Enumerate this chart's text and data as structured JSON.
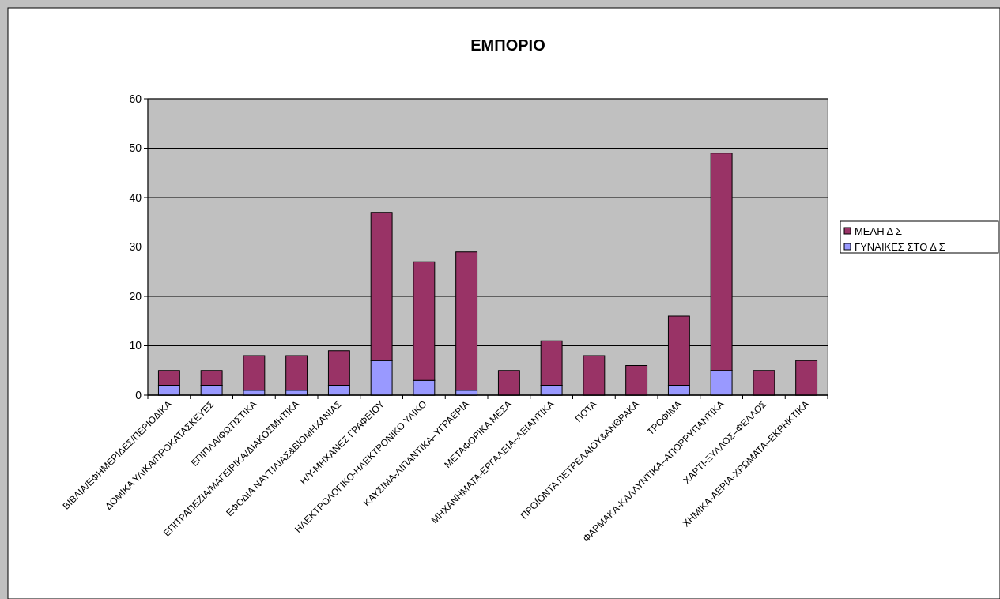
{
  "chart_data": {
    "type": "bar",
    "title": "ΕΜΠΟΡΙΟ",
    "stacked": true,
    "legend": "right",
    "grid": "y",
    "categories": [
      "ΒΙΒΛΙΑ/ΕΦΗΜΕΡΙΔΕΣ/ΠΕΡΙΟΔΙΚΑ",
      "ΔΟΜΙΚΑ ΥΛΙΚΑ/ΠΡΟΚΑΤΑΣΚΕΥΕΣ",
      "ΕΠΙΠΛΑ/ΦΩΤΙΣΤΙΚΑ",
      "ΕΠΙΤΡΑΠΕΖΙΑ/ΜΑΓΕΙΡΙΚΑ/ΔΙΑΚΟΣΜΗΤΙΚΑ",
      "ΕΦΟΔΙΑ ΝΑΥΤΙΛΙΑΣ&ΒΙΟΜΗΧΑΝΙΑΣ",
      "Η/Υ-ΜΗΧΑΝΕΣ ΓΡΑΦΕΙΟΥ",
      "ΗΛΕΚΤΡΟΛΟΓΙΚΟ-ΗΛΕΚΤΡΟΝΙΚΟ ΥΛΙΚΟ",
      "ΚΑΥΣΙΜΑ-ΛΙΠΑΝΤΙΚΑ–ΥΓΡΑΕΡΙΑ",
      "ΜΕΤΑΦΟΡΙΚΑ ΜΕΣΑ",
      "ΜΗΧΑΝΗΜΑΤΑ-ΕΡΓΑΛΕΙΑ–ΛΕΙΑΝΤΙΚΑ",
      "ΠΟΤΑ",
      "ΠΡΟΪΟΝΤΑ ΠΕΤΡΕΛΑΙΟΥ&ΑΝΘΡΑΚΑ",
      "ΤΡΟΦΙΜΑ",
      "ΦΑΡΜΑΚΑ-ΚΑΛΛΥΝΤΙΚΑ–ΑΠΟΡΡΥΠΑΝΤΙΚΑ",
      "ΧΑΡΤΙ-ΞΥΛΛΟΣ–ΦΕΛΛΟΣ",
      "ΧΗΜΙΚΑ-ΑΕΡΙΑ-ΧΡΩΜΑΤΑ–ΕΚΡΗΚΤΙΚΑ"
    ],
    "series": [
      {
        "name": "ΓΥΝΑΙΚΕΣ ΣΤΟ Δ Σ",
        "color": "#9999ff",
        "values": [
          2,
          2,
          1,
          1,
          2,
          7,
          3,
          1,
          0,
          2,
          0,
          0,
          2,
          5,
          0,
          0
        ]
      },
      {
        "name": "ΜΕΛΗ Δ Σ",
        "color": "#993366",
        "values": [
          3,
          3,
          7,
          7,
          7,
          30,
          24,
          28,
          5,
          9,
          8,
          6,
          14,
          44,
          5,
          7
        ]
      }
    ],
    "ylim": [
      0,
      60
    ],
    "yticks": [
      0,
      10,
      20,
      30,
      40,
      50,
      60
    ]
  }
}
